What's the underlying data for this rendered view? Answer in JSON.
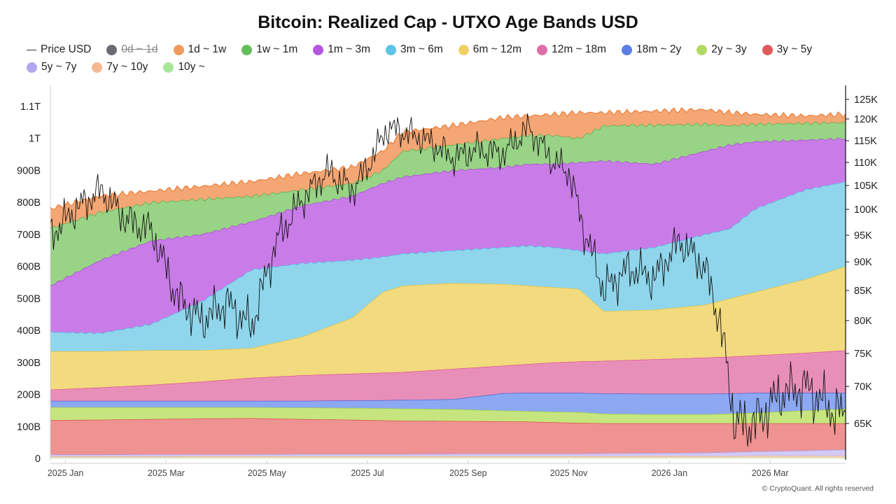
{
  "chart_data": {
    "type": "area",
    "title": "Bitcoin: Realized Cap - UTXO Age Bands USD",
    "watermark": "CryptoQuant",
    "copyright": "© CryptoQuant. All rights reserved",
    "x_labels": [
      "2025 Jan",
      "2025 Mar",
      "2025 May",
      "2025 Jul",
      "2025 Sep",
      "2025 Nov",
      "2026 Jan",
      "2026 Mar"
    ],
    "x_label_months": [
      0.3,
      2.3,
      4.3,
      6.3,
      8.3,
      10.3,
      12.3,
      14.3
    ],
    "x_range_months": [
      0,
      15.8
    ],
    "y_left_ticks": [
      "0",
      "100B",
      "200B",
      "300B",
      "400B",
      "500B",
      "600B",
      "700B",
      "800B",
      "900B",
      "1T",
      "1.1T"
    ],
    "y_left_values": [
      0,
      100,
      200,
      300,
      400,
      500,
      600,
      700,
      800,
      900,
      1000,
      1100
    ],
    "y_left_range": [
      0,
      1150
    ],
    "y_right_ticks": [
      "65K",
      "70K",
      "75K",
      "80K",
      "85K",
      "90K",
      "95K",
      "100K",
      "105K",
      "110K",
      "115K",
      "120K",
      "125K"
    ],
    "y_right_values": [
      65,
      70,
      75,
      80,
      85,
      90,
      95,
      100,
      105,
      110,
      115,
      120,
      125
    ],
    "legend": [
      {
        "name": "Price USD",
        "kind": "line",
        "color": "#333333",
        "enabled": true
      },
      {
        "name": "0d ~ 1d",
        "kind": "dot",
        "color": "#6b6b73",
        "enabled": false
      },
      {
        "name": "1d ~ 1w",
        "kind": "dot",
        "color": "#f29a5c",
        "enabled": true
      },
      {
        "name": "1w ~ 1m",
        "kind": "dot",
        "color": "#64be5a",
        "enabled": true
      },
      {
        "name": "1m ~ 3m",
        "kind": "dot",
        "color": "#b655e0",
        "enabled": true
      },
      {
        "name": "3m ~ 6m",
        "kind": "dot",
        "color": "#5cc4e6",
        "enabled": true
      },
      {
        "name": "6m ~ 12m",
        "kind": "dot",
        "color": "#f0d066",
        "enabled": true
      },
      {
        "name": "12m ~ 18m",
        "kind": "dot",
        "color": "#e06ea6",
        "enabled": true
      },
      {
        "name": "18m ~ 2y",
        "kind": "dot",
        "color": "#5b7ee6",
        "enabled": true
      },
      {
        "name": "2y ~ 3y",
        "kind": "dot",
        "color": "#b4d964",
        "enabled": true
      },
      {
        "name": "3y ~ 5y",
        "kind": "dot",
        "color": "#e05a5a",
        "enabled": true
      },
      {
        "name": "5y ~ 7y",
        "kind": "dot",
        "color": "#b3a6f0",
        "enabled": true
      },
      {
        "name": "7y ~ 10y",
        "kind": "dot",
        "color": "#f5b890",
        "enabled": true
      },
      {
        "name": "10y ~",
        "kind": "dot",
        "color": "#a8e69a",
        "enabled": true
      }
    ],
    "band_stack_order": [
      "10y ~",
      "7y ~ 10y",
      "5y ~ 7y",
      "3y ~ 5y",
      "2y ~ 3y",
      "18m ~ 2y",
      "12m ~ 18m",
      "6m ~ 12m",
      "3m ~ 6m",
      "1m ~ 3m",
      "1w ~ 1m",
      "1d ~ 1w"
    ],
    "band_fill_colors": {
      "10y ~": "#d9f2c8",
      "7y ~ 10y": "#f9d3b8",
      "5y ~ 7y": "#d2c9f5",
      "3y ~ 5y": "#ee9292",
      "2y ~ 3y": "#c6e57e",
      "18m ~ 2y": "#8ca8f2",
      "12m ~ 18m": "#e88fb9",
      "6m ~ 12m": "#f2da7e",
      "3m ~ 6m": "#8fd6ec",
      "1m ~ 3m": "#c97ce8",
      "1w ~ 1m": "#98d386",
      "1d ~ 1w": "#f4a774"
    },
    "band_edge_colors": {
      "10y ~": "#bfe3a8",
      "7y ~ 10y": "#f1b58c",
      "5y ~ 7y": "#a99ae6",
      "3y ~ 5y": "#d8463f",
      "2y ~ 3y": "#9ccd3c",
      "18m ~ 2y": "#3d5fd6",
      "12m ~ 18m": "#d94c8f",
      "6m ~ 12m": "#e6be3a",
      "3m ~ 6m": "#4cb8e0",
      "1m ~ 3m": "#a73fd6",
      "1w ~ 1m": "#4faa43",
      "1d ~ 1w": "#ec8240"
    },
    "cumulative_top_usd_billions": {
      "months": [
        0,
        1,
        2,
        3,
        4,
        5,
        6,
        6.6,
        7,
        8,
        9,
        9.5,
        10,
        10.5,
        11,
        12,
        13,
        13.5,
        14,
        15,
        15.8
      ],
      "10y ~": [
        3,
        3,
        3,
        3,
        3,
        3,
        3,
        3,
        3,
        3,
        3,
        3,
        3,
        3,
        3,
        3,
        3,
        3,
        3,
        3,
        3
      ],
      "7y ~ 10y": [
        6,
        6,
        6,
        7,
        7,
        7,
        7,
        7,
        7,
        7,
        7,
        7,
        7,
        7,
        7,
        7,
        7,
        7,
        8,
        8,
        8
      ],
      "5y ~ 7y": [
        12,
        12,
        13,
        13,
        13,
        14,
        14,
        14,
        14,
        15,
        15,
        15,
        15,
        15,
        16,
        17,
        18,
        20,
        22,
        25,
        28
      ],
      "3y ~ 5y": [
        120,
        121,
        123,
        125,
        126,
        123,
        121,
        119,
        118,
        117,
        116,
        115,
        113,
        111,
        110,
        110,
        110,
        110,
        110,
        110,
        110
      ],
      "2y ~ 3y": [
        160,
        160,
        160,
        160,
        160,
        159,
        158,
        157,
        156,
        154,
        150,
        148,
        146,
        145,
        140,
        138,
        138,
        140,
        143,
        150,
        155
      ],
      "18m ~ 2y": [
        180,
        180,
        180,
        180,
        180,
        180,
        181,
        182,
        183,
        185,
        204,
        205,
        205,
        205,
        203,
        202,
        202,
        203,
        205,
        205,
        205
      ],
      "12m ~ 18m": [
        215,
        222,
        230,
        240,
        252,
        260,
        265,
        268,
        270,
        280,
        290,
        295,
        300,
        303,
        305,
        310,
        315,
        318,
        322,
        330,
        338
      ],
      "6m ~ 12m": [
        335,
        335,
        338,
        338,
        345,
        380,
        440,
        520,
        540,
        548,
        545,
        540,
        535,
        530,
        460,
        465,
        480,
        500,
        520,
        560,
        600
      ],
      "3m ~ 6m": [
        395,
        392,
        420,
        490,
        590,
        610,
        620,
        630,
        640,
        650,
        660,
        665,
        660,
        650,
        640,
        660,
        700,
        718,
        780,
        840,
        865
      ],
      "1m ~ 3m": [
        540,
        620,
        680,
        700,
        740,
        790,
        820,
        860,
        880,
        900,
        910,
        920,
        920,
        925,
        930,
        920,
        960,
        980,
        990,
        995,
        1000
      ],
      "1w ~ 1m": [
        720,
        770,
        800,
        810,
        820,
        840,
        860,
        900,
        960,
        980,
        1000,
        1010,
        1010,
        1000,
        1040,
        1042,
        1045,
        1040,
        1045,
        1048,
        1050
      ],
      "1d ~ 1w": [
        780,
        820,
        835,
        850,
        865,
        890,
        910,
        960,
        1020,
        1040,
        1065,
        1070,
        1075,
        1080,
        1080,
        1085,
        1090,
        1080,
        1075,
        1070,
        1075
      ]
    },
    "price_usd_thousands": {
      "months": [
        0,
        0.5,
        1,
        1.5,
        2,
        2.5,
        3,
        3.5,
        4,
        4.5,
        5,
        5.5,
        6,
        6.3,
        6.7,
        7,
        7.5,
        8,
        8.5,
        9,
        9.5,
        10,
        10.3,
        10.6,
        11,
        11.5,
        12,
        12.5,
        13,
        13.3,
        13.6,
        14,
        14.5,
        15,
        15.5,
        15.8
      ],
      "values": [
        95,
        100,
        104,
        98,
        96,
        84,
        80,
        83,
        79,
        94,
        102,
        108,
        104,
        109,
        118,
        117,
        115,
        111,
        113,
        112,
        118,
        110,
        108,
        96,
        85,
        89,
        87,
        94,
        89,
        80,
        65,
        65,
        69,
        70,
        67,
        66
      ]
    }
  }
}
